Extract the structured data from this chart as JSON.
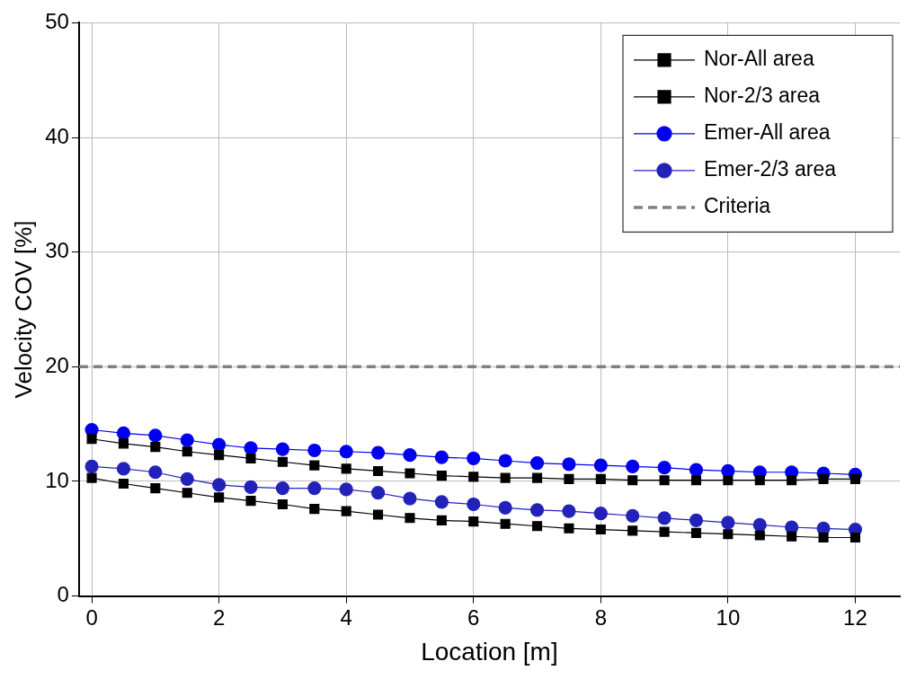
{
  "chart_data": {
    "type": "line",
    "xlabel": "Location [m]",
    "ylabel": "Velocity COV [%]",
    "x": [
      0,
      0.5,
      1,
      1.5,
      2,
      2.5,
      3,
      3.5,
      4,
      4.5,
      5,
      5.5,
      6,
      6.5,
      7,
      7.5,
      8,
      8.5,
      9,
      9.5,
      10,
      10.5,
      11,
      11.5,
      12
    ],
    "xlim": [
      -0.2,
      12.7
    ],
    "xticks": [
      0,
      2,
      4,
      6,
      8,
      10,
      12
    ],
    "ylim": [
      0,
      50
    ],
    "yticks": [
      0,
      10,
      20,
      30,
      40,
      50
    ],
    "grid": true,
    "legend": "top right",
    "line_style": "solid",
    "series": [
      {
        "name": "Nor-All area",
        "color": "#000000",
        "marker": "square",
        "values": [
          13.7,
          13.3,
          13.0,
          12.6,
          12.3,
          12.0,
          11.7,
          11.4,
          11.1,
          10.9,
          10.7,
          10.5,
          10.4,
          10.3,
          10.3,
          10.2,
          10.2,
          10.1,
          10.1,
          10.1,
          10.1,
          10.1,
          10.1,
          10.2,
          10.2
        ]
      },
      {
        "name": "Nor-2/3 area",
        "color": "#000000",
        "marker": "square",
        "values": [
          10.3,
          9.8,
          9.4,
          9.0,
          8.6,
          8.3,
          8.0,
          7.6,
          7.4,
          7.1,
          6.8,
          6.6,
          6.5,
          6.3,
          6.1,
          5.9,
          5.8,
          5.7,
          5.6,
          5.5,
          5.4,
          5.3,
          5.2,
          5.1,
          5.1
        ]
      },
      {
        "name": "Emer-All area",
        "color": "#0000ee",
        "marker": "circle",
        "values": [
          14.5,
          14.2,
          14.0,
          13.6,
          13.2,
          12.9,
          12.8,
          12.7,
          12.6,
          12.5,
          12.3,
          12.1,
          12.0,
          11.8,
          11.6,
          11.5,
          11.4,
          11.3,
          11.2,
          11.0,
          10.9,
          10.8,
          10.8,
          10.7,
          10.6
        ]
      },
      {
        "name": "Emer-2/3 area",
        "color": "#2222bb",
        "marker": "circle",
        "values": [
          11.3,
          11.1,
          10.8,
          10.2,
          9.7,
          9.5,
          9.4,
          9.4,
          9.3,
          9.0,
          8.5,
          8.2,
          8.0,
          7.7,
          7.5,
          7.4,
          7.2,
          7.0,
          6.8,
          6.6,
          6.4,
          6.2,
          6.0,
          5.9,
          5.8
        ]
      }
    ],
    "ref_lines": [
      {
        "axis": "y",
        "value": 20,
        "label": "Criteria",
        "color": "#808080",
        "line_style": "dashed"
      }
    ]
  }
}
